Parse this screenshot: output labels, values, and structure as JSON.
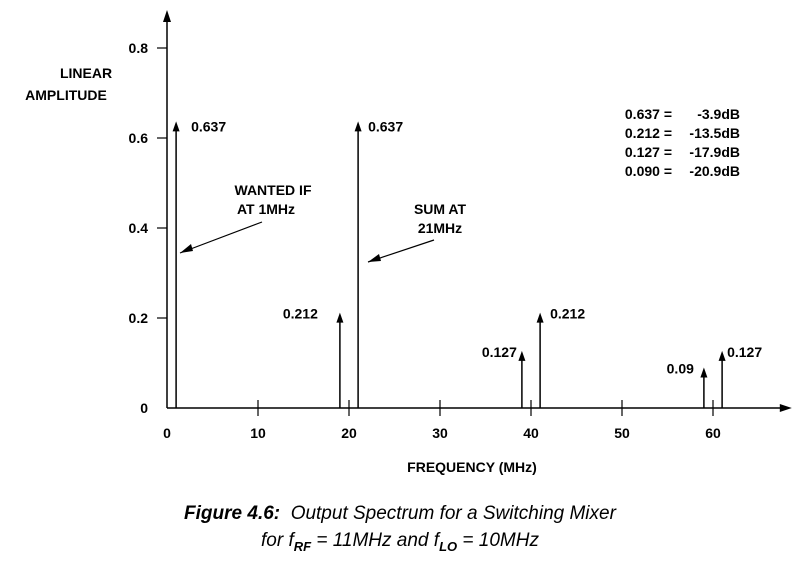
{
  "chart_data": {
    "type": "bar",
    "ylabel_line1": "LINEAR",
    "ylabel_line2": "AMPLITUDE",
    "xlabel": "FREQUENCY (MHz)",
    "xlim": [
      0,
      68
    ],
    "ylim": [
      0,
      0.85
    ],
    "x_ticks": [
      "0",
      "10",
      "20",
      "30",
      "40",
      "50",
      "60"
    ],
    "x_tick_values": [
      0,
      10,
      20,
      30,
      40,
      50,
      60
    ],
    "y_ticks": [
      "0",
      "0.2",
      "0.4",
      "0.6",
      "0.8"
    ],
    "y_tick_values": [
      0,
      0.2,
      0.4,
      0.6,
      0.8
    ],
    "lines": [
      {
        "x": 1,
        "y": 0.637,
        "label": "0.637"
      },
      {
        "x": 19,
        "y": 0.212,
        "label": "0.212"
      },
      {
        "x": 21,
        "y": 0.637,
        "label": "0.637"
      },
      {
        "x": 39,
        "y": 0.127,
        "label": "0.127"
      },
      {
        "x": 41,
        "y": 0.212,
        "label": "0.212"
      },
      {
        "x": 59,
        "y": 0.09,
        "label": "0.09"
      },
      {
        "x": 61,
        "y": 0.127,
        "label": "0.127"
      }
    ],
    "annotations": {
      "wanted_line1": "WANTED IF",
      "wanted_line2": "AT 1MHz",
      "sum_line1": "SUM AT",
      "sum_line2": "21MHz"
    },
    "db_table": [
      {
        "lin": "0.637 =",
        "db": "-3.9dB"
      },
      {
        "lin": "0.212 =",
        "db": "-13.5dB"
      },
      {
        "lin": "0.127 =",
        "db": "-17.9dB"
      },
      {
        "lin": "0.090 =",
        "db": "-20.9dB"
      }
    ]
  },
  "caption": {
    "figure": "Figure 4.6:",
    "title": "Output Spectrum for a Switching Mixer",
    "line2_pre": "for f",
    "sub_rf": "RF",
    "line2_mid": " = 11MHz and f",
    "sub_lo": "LO",
    "line2_post": " = 10MHz"
  }
}
